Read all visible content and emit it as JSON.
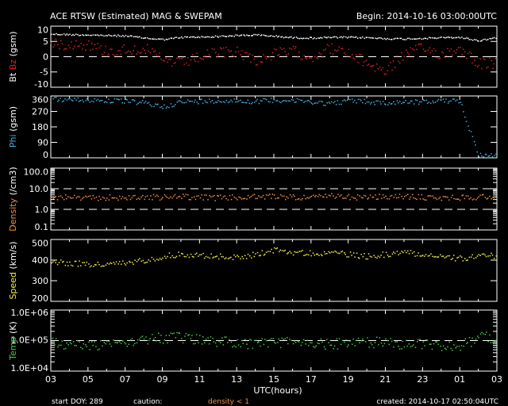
{
  "chart_data": {
    "type": "scatter",
    "title": "ACE RTSW (Estimated) MAG & SWEPAM",
    "begin": "Begin: 2014-10-16 03:00:00UTC",
    "xlabel": "UTC(hours)",
    "x_hours": [
      0,
      1,
      2,
      3,
      4,
      5,
      6,
      7,
      8,
      9,
      10,
      11,
      12,
      13,
      14,
      15,
      16,
      17,
      18,
      19,
      20,
      21,
      22,
      23,
      24
    ],
    "x_tick_labels": [
      "03",
      "05",
      "07",
      "09",
      "11",
      "13",
      "15",
      "17",
      "19",
      "21",
      "23",
      "01",
      "03"
    ],
    "panels": [
      {
        "id": "mag",
        "ylabel_parts": [
          {
            "text": "Bt ",
            "color": "#ffffff"
          },
          {
            "text": "Bz",
            "color": "#e02020"
          },
          {
            "text": " (gsm)",
            "color": "#ffffff"
          }
        ],
        "scale": "linear",
        "ylim": [
          -10,
          10
        ],
        "yticks": [
          10,
          5,
          0,
          -5,
          -10
        ],
        "ytick_labels": [
          "10",
          "5",
          "0",
          "-5",
          "-10"
        ],
        "ref_lines": [
          0
        ],
        "series": [
          {
            "name": "Bt",
            "color": "#ffffff",
            "values": [
              7.6,
              7.4,
              7.3,
              7.1,
              7.0,
              6.3,
              5.8,
              6.5,
              6.6,
              6.8,
              7.1,
              7.3,
              6.9,
              6.4,
              6.3,
              6.5,
              6.5,
              6.4,
              6.1,
              6.0,
              6.2,
              6.4,
              6.5,
              5.4,
              6.5
            ]
          },
          {
            "name": "Bz",
            "color": "#e02020",
            "values": [
              4,
              4.5,
              4,
              2,
              2.5,
              3,
              -1,
              -2,
              0,
              1.5,
              2,
              -1,
              1,
              2,
              0,
              3,
              1,
              -2,
              -4.5,
              1,
              3,
              1,
              3,
              -2,
              -2
            ]
          }
        ]
      },
      {
        "id": "phi",
        "ylabel_parts": [
          {
            "text": "Phi",
            "color": "#40b0e0"
          },
          {
            "text": " (gsm)",
            "color": "#ffffff"
          }
        ],
        "scale": "linear",
        "ylim": [
          0,
          360
        ],
        "yticks": [
          360,
          270,
          180,
          90,
          0
        ],
        "ytick_labels": [
          "360",
          "270",
          "180",
          "90",
          "0"
        ],
        "ref_lines": [],
        "series": [
          {
            "name": "Phi",
            "color": "#40b0e0",
            "values": [
              345,
              340,
              340,
              335,
              332,
              322,
              300,
              328,
              332,
              336,
              335,
              330,
              340,
              335,
              330,
              318,
              336,
              330,
              320,
              330,
              328,
              335,
              330,
              20,
              15
            ]
          }
        ]
      },
      {
        "id": "density",
        "ylabel_parts": [
          {
            "text": "Density",
            "color": "#f09040"
          },
          {
            "text": " (/cm3)",
            "color": "#ffffff"
          }
        ],
        "scale": "log",
        "ylim": [
          0.1,
          100
        ],
        "yticks": [
          100,
          10,
          1,
          0.1
        ],
        "ytick_labels": [
          "100.0",
          "10.0",
          "1.0",
          "0.1"
        ],
        "ref_lines": [
          1,
          10
        ],
        "series": [
          {
            "name": "Density",
            "color": "#f09040",
            "values": [
              4.2,
              4.0,
              3.5,
              4.0,
              3.8,
              4.2,
              4.0,
              4.5,
              4.0,
              3.8,
              4.0,
              4.2,
              4.5,
              4.2,
              4.0,
              4.5,
              4.2,
              4.0,
              4.2,
              4.5,
              4.0,
              3.8,
              4.0,
              4.2,
              4.5
            ]
          }
        ]
      },
      {
        "id": "speed",
        "ylabel_parts": [
          {
            "text": "Speed",
            "color": "#f0f040"
          },
          {
            "text": " (km/s)",
            "color": "#ffffff"
          }
        ],
        "scale": "linear",
        "ylim": [
          200,
          500
        ],
        "yticks": [
          500,
          400,
          300,
          200
        ],
        "ytick_labels": [
          "500",
          "400",
          "300",
          "200"
        ],
        "ref_lines": [],
        "series": [
          {
            "name": "Speed",
            "color": "#f0f040",
            "values": [
              395,
              388,
              382,
              380,
              388,
              402,
              420,
              432,
              425,
              420,
              415,
              430,
              452,
              440,
              435,
              440,
              430,
              420,
              430,
              442,
              430,
              418,
              410,
              420,
              425
            ]
          }
        ]
      },
      {
        "id": "temp",
        "ylabel_parts": [
          {
            "text": "Temp",
            "color": "#40d040"
          },
          {
            "text": " (K)",
            "color": "#ffffff"
          }
        ],
        "scale": "log",
        "ylim": [
          10000,
          1000000
        ],
        "yticks": [
          1000000,
          100000,
          10000
        ],
        "ytick_labels": [
          "1.0E+06",
          "1.0E+05",
          "1.0E+04"
        ],
        "ref_lines": [
          100000
        ],
        "series": [
          {
            "name": "Temp",
            "color": "#40d040",
            "values": [
              90000,
              75000,
              70000,
              85000,
              100000,
              115000,
              125000,
              125000,
              110000,
              100000,
              90000,
              80000,
              90000,
              90000,
              80000,
              80000,
              90000,
              90000,
              88000,
              80000,
              80000,
              72000,
              72000,
              125000,
              140000
            ]
          }
        ]
      }
    ]
  },
  "footer": {
    "start_doy": "start DOY: 289",
    "caution": "caution:",
    "caution_item": "density < 1",
    "caution_color": "#f09040",
    "created": "created: 2014-10-17 02:50:04UTC"
  }
}
